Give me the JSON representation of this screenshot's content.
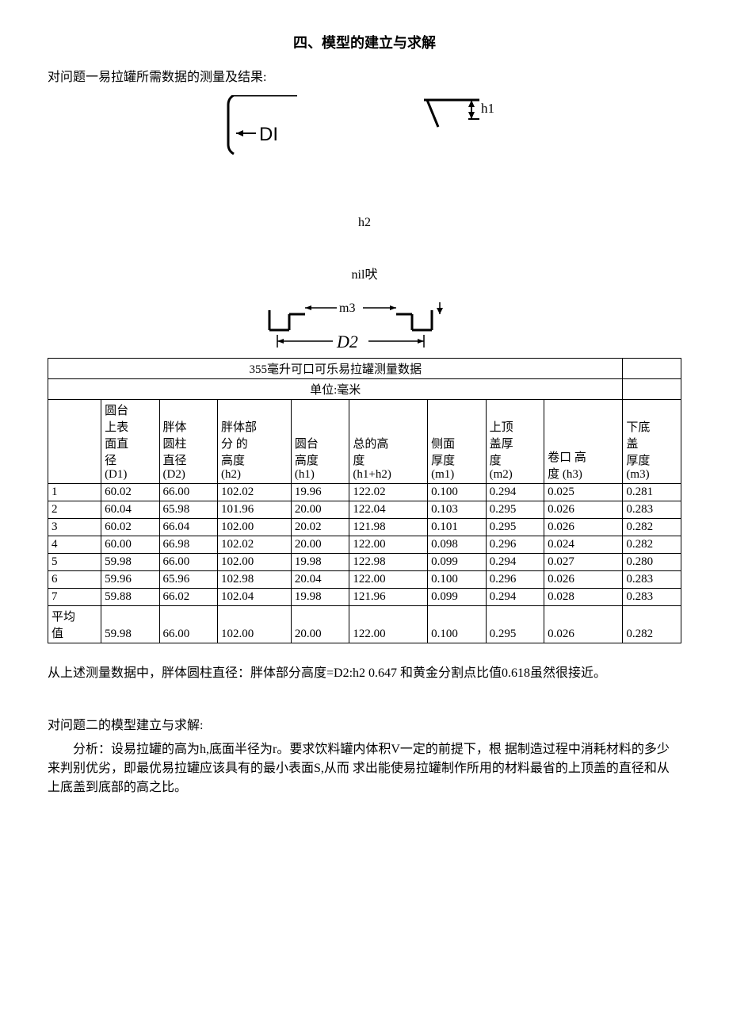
{
  "title": "四、模型的建立与求解",
  "intro": "对问题一易拉罐所需数据的测量及结果:",
  "diagram1": {
    "label_DI": "DI",
    "label_h1": "h1"
  },
  "label_h2": "h2",
  "label_nil": "nil吠",
  "diagram2": {
    "label_m3": "m3",
    "label_D2": "D2"
  },
  "table": {
    "caption": "355毫升可口可乐易拉罐测量数据",
    "unit": "单位:毫米",
    "columns": [
      "",
      "圆台上表面直径 (D1)",
      "胖体圆柱直径 (D2)",
      "胖体部分的高度 (h2)",
      "圆台高度 (h1)",
      "总的高度 (h1+h2)",
      "侧面厚度 (m1)",
      "上顶盖厚度 (m2)",
      "卷口 高度  (h3)",
      "下底盖厚度 (m3)"
    ],
    "header_lines": {
      "c0": [
        ""
      ],
      "c1": [
        "圆台",
        "上表",
        "面直",
        "径",
        "(D1)"
      ],
      "c2": [
        "",
        "胖体",
        "圆柱",
        "直径",
        "(D2)"
      ],
      "c3": [
        "胖体部",
        "分 的",
        "高度",
        "(h2)"
      ],
      "c4": [
        "",
        "圆台",
        "高度",
        "(h1)"
      ],
      "c5": [
        "",
        "总的高",
        "度",
        "(h1+h2)"
      ],
      "c6": [
        "",
        "侧面",
        "厚度",
        "(m1)"
      ],
      "c7": [
        "上顶",
        "盖厚",
        "度",
        "(m2)"
      ],
      "c8": [
        "",
        "",
        "卷口 高",
        "度  (h3)"
      ],
      "c9": [
        "下底",
        "盖",
        "厚度",
        "(m3)"
      ]
    },
    "rows": [
      [
        "1",
        "60.02",
        "66.00",
        "102.02",
        "19.96",
        "122.02",
        "0.100",
        "0.294",
        "0.025",
        "0.281"
      ],
      [
        "2",
        "60.04",
        "65.98",
        "101.96",
        "20.00",
        "122.04",
        "0.103",
        "0.295",
        "0.026",
        "0.283"
      ],
      [
        "3",
        "60.02",
        "66.04",
        "102.00",
        "20.02",
        "121.98",
        "0.101",
        "0.295",
        "0.026",
        "0.282"
      ],
      [
        "4",
        "60.00",
        "66.98",
        "102.02",
        "20.00",
        "122.00",
        "0.098",
        "0.296",
        "0.024",
        "0.282"
      ],
      [
        "5",
        "59.98",
        "66.00",
        "102.00",
        "19.98",
        "122.98",
        "0.099",
        "0.294",
        "0.027",
        "0.280"
      ],
      [
        "6",
        "59.96",
        "65.96",
        "102.98",
        "20.04",
        "122.00",
        "0.100",
        "0.296",
        "0.026",
        "0.283"
      ],
      [
        "7",
        "59.88",
        "66.02",
        "102.04",
        "19.98",
        "121.96",
        "0.099",
        "0.294",
        "0.028",
        "0.283"
      ]
    ],
    "avg_label": "平均值",
    "avg": [
      "59.98",
      "66.00",
      "102.00",
      "20.00",
      "122.00",
      "0.100",
      "0.295",
      "0.026",
      "0.282"
    ]
  },
  "para_after_table": "从上述测量数据中，胖体圆柱直径：胖体部分高度=D2:h2    0.647 和黄金分割点比值0.618虽然很接近。",
  "q2_heading": "对问题二的模型建立与求解:",
  "q2_body": "分析：设易拉罐的高为h,底面半径为r。要求饮料罐内体积V一定的前提下，根 据制造过程中消耗材料的多少来判别优劣，即最优易拉罐应该具有的最小表面S,从而 求出能使易拉罐制作所用的材料最省的上顶盖的直径和从上底盖到底部的高之比。"
}
